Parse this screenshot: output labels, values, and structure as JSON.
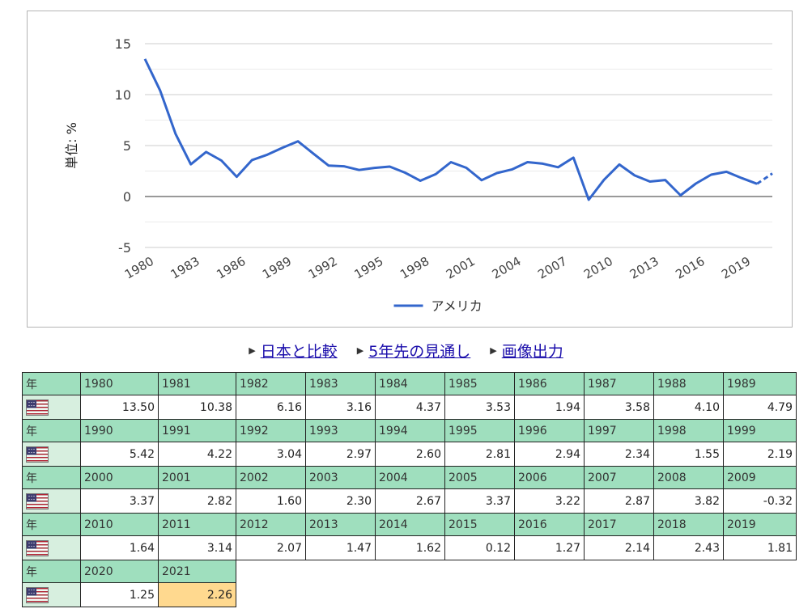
{
  "chart_data": {
    "type": "line",
    "ylabel": "単位: %",
    "ylim": [
      -5,
      15
    ],
    "yticks": [
      -5,
      0,
      5,
      10,
      15
    ],
    "xtick_labels": [
      "1980",
      "1983",
      "1986",
      "1989",
      "1992",
      "1995",
      "1998",
      "2001",
      "2004",
      "2007",
      "2010",
      "2013",
      "2016",
      "2019"
    ],
    "x": [
      1980,
      1981,
      1982,
      1983,
      1984,
      1985,
      1986,
      1987,
      1988,
      1989,
      1990,
      1991,
      1992,
      1993,
      1994,
      1995,
      1996,
      1997,
      1998,
      1999,
      2000,
      2001,
      2002,
      2003,
      2004,
      2005,
      2006,
      2007,
      2008,
      2009,
      2010,
      2011,
      2012,
      2013,
      2014,
      2015,
      2016,
      2017,
      2018,
      2019,
      2020,
      2021
    ],
    "series": [
      {
        "name": "アメリカ",
        "color": "#3366cc",
        "values": [
          13.5,
          10.38,
          6.16,
          3.16,
          4.37,
          3.53,
          1.94,
          3.58,
          4.1,
          4.79,
          5.42,
          4.22,
          3.04,
          2.97,
          2.6,
          2.81,
          2.94,
          2.34,
          1.55,
          2.19,
          3.37,
          2.82,
          1.6,
          2.3,
          2.67,
          3.37,
          3.22,
          2.87,
          3.82,
          -0.32,
          1.64,
          3.14,
          2.07,
          1.47,
          1.62,
          0.12,
          1.27,
          2.14,
          2.43,
          1.81,
          1.25,
          2.26
        ],
        "dashed_from": 2020
      }
    ],
    "grid": true,
    "legend": "bottom-center"
  },
  "links": [
    {
      "label": "日本と比較"
    },
    {
      "label": "5年先の見通し"
    },
    {
      "label": "画像出力"
    }
  ],
  "table": {
    "year_header": "年",
    "flag_icon": "us-flag-icon",
    "highlight_year": "2021",
    "rows": [
      {
        "years": [
          "1980",
          "1981",
          "1982",
          "1983",
          "1984",
          "1985",
          "1986",
          "1987",
          "1988",
          "1989"
        ],
        "values": [
          "13.50",
          "10.38",
          "6.16",
          "3.16",
          "4.37",
          "3.53",
          "1.94",
          "3.58",
          "4.10",
          "4.79"
        ]
      },
      {
        "years": [
          "1990",
          "1991",
          "1992",
          "1993",
          "1994",
          "1995",
          "1996",
          "1997",
          "1998",
          "1999"
        ],
        "values": [
          "5.42",
          "4.22",
          "3.04",
          "2.97",
          "2.60",
          "2.81",
          "2.94",
          "2.34",
          "1.55",
          "2.19"
        ]
      },
      {
        "years": [
          "2000",
          "2001",
          "2002",
          "2003",
          "2004",
          "2005",
          "2006",
          "2007",
          "2008",
          "2009"
        ],
        "values": [
          "3.37",
          "2.82",
          "1.60",
          "2.30",
          "2.67",
          "3.37",
          "3.22",
          "2.87",
          "3.82",
          "-0.32"
        ]
      },
      {
        "years": [
          "2010",
          "2011",
          "2012",
          "2013",
          "2014",
          "2015",
          "2016",
          "2017",
          "2018",
          "2019"
        ],
        "values": [
          "1.64",
          "3.14",
          "2.07",
          "1.47",
          "1.62",
          "0.12",
          "1.27",
          "2.14",
          "2.43",
          "1.81"
        ]
      },
      {
        "years": [
          "2020",
          "2021"
        ],
        "values": [
          "1.25",
          "2.26"
        ]
      }
    ]
  }
}
